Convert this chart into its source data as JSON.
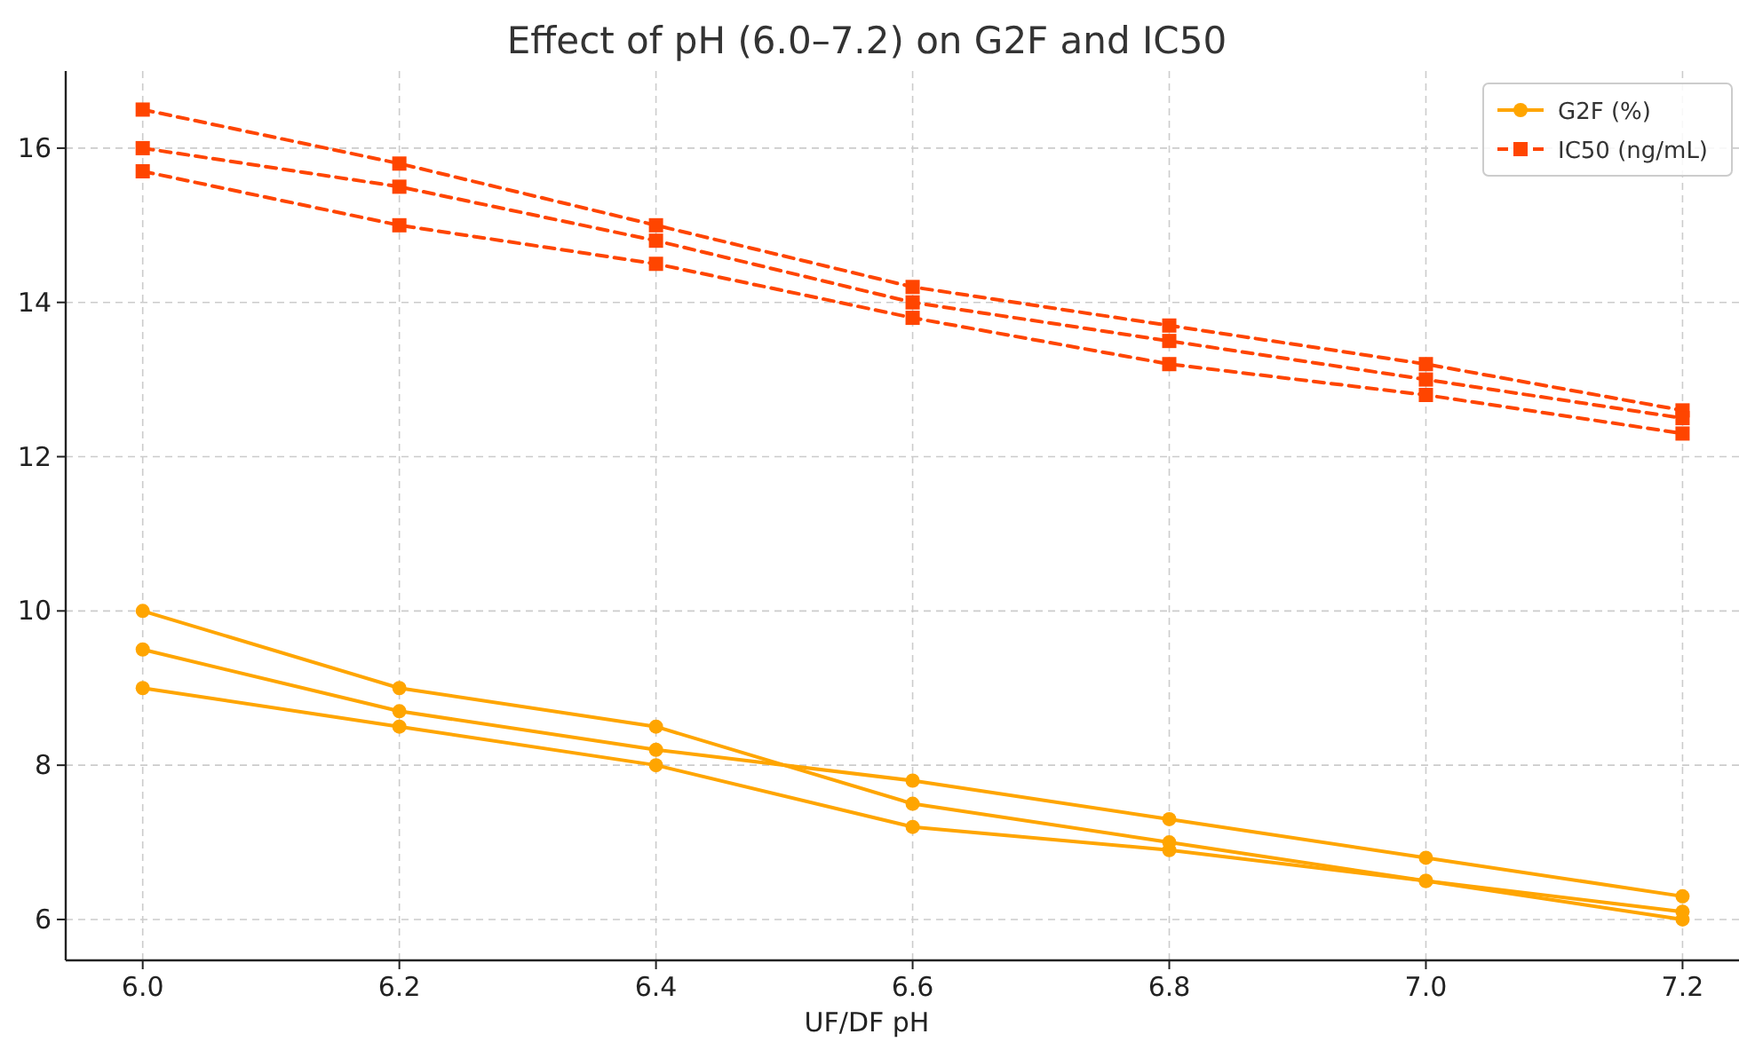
{
  "chart_data": {
    "type": "line",
    "title": "Effect of pH (6.0–7.2) on G2F and IC50",
    "xlabel": "UF/DF pH",
    "x": [
      6.0,
      6.2,
      6.4,
      6.6,
      6.8,
      7.0,
      7.2
    ],
    "xlim": [
      5.94,
      7.244
    ],
    "xticks": [
      {
        "value": 6.0,
        "label": "6.0"
      },
      {
        "value": 6.2,
        "label": "6.2"
      },
      {
        "value": 6.4,
        "label": "6.4"
      },
      {
        "value": 6.6,
        "label": "6.6"
      },
      {
        "value": 6.8,
        "label": "6.8"
      },
      {
        "value": 7.0,
        "label": "7.0"
      },
      {
        "value": 7.2,
        "label": "7.2"
      }
    ],
    "ylim": [
      5.47,
      17.0
    ],
    "yticks": [
      6,
      8,
      10,
      12,
      14,
      16
    ],
    "grid": true,
    "legend": "top right",
    "series": [
      {
        "name": "G2F (%)",
        "color": "#ffa500",
        "marker": "circle",
        "line_style": "solid",
        "values": [
          10.0,
          9.0,
          8.5,
          7.5,
          7.0,
          6.5,
          6.1
        ]
      },
      {
        "color": "#ffa500",
        "marker": "circle",
        "line_style": "solid",
        "values": [
          9.5,
          8.7,
          8.2,
          7.8,
          7.3,
          6.8,
          6.3
        ]
      },
      {
        "color": "#ffa500",
        "marker": "circle",
        "line_style": "solid",
        "values": [
          9.0,
          8.5,
          8.0,
          7.2,
          6.9,
          6.5,
          6.0
        ]
      },
      {
        "name": "IC50 (ng/mL)",
        "color": "#ff4500",
        "marker": "square",
        "line_style": "dashed",
        "values": [
          16.5,
          15.8,
          15.0,
          14.2,
          13.7,
          13.2,
          12.6
        ]
      },
      {
        "color": "#ff4500",
        "marker": "square",
        "line_style": "dashed",
        "values": [
          16.0,
          15.5,
          14.8,
          14.0,
          13.5,
          13.0,
          12.5
        ]
      },
      {
        "color": "#ff4500",
        "marker": "square",
        "line_style": "dashed",
        "values": [
          15.7,
          15.0,
          14.5,
          13.8,
          13.2,
          12.8,
          12.3
        ]
      }
    ]
  }
}
